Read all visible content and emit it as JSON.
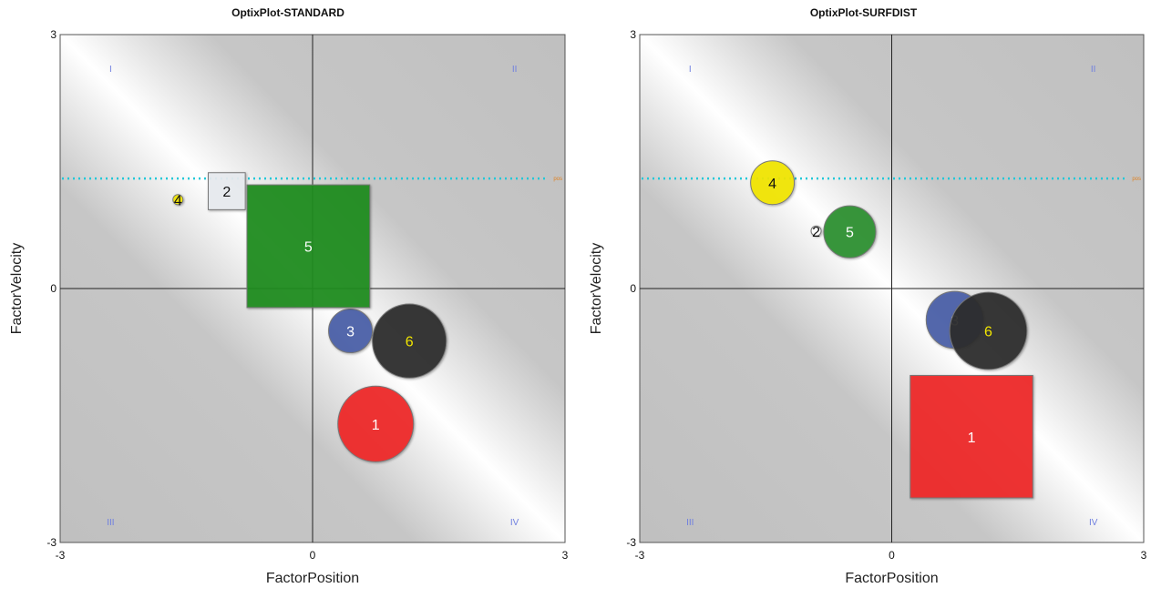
{
  "chart_data": [
    {
      "type": "scatter",
      "title": "OptixPlot-STANDARD",
      "xlabel": "FactorPosition",
      "ylabel": "FactorVelocity",
      "xlim": [
        -3,
        3
      ],
      "ylim": [
        -3,
        3
      ],
      "x_ticks": [
        "-3",
        "0",
        "3"
      ],
      "y_ticks": [
        "3",
        "0",
        "-3"
      ],
      "quadrant_labels": [
        "I",
        "II",
        "III",
        "IV"
      ],
      "reference_line": {
        "y": 1.3,
        "color": "#22c8d8",
        "label": "pos"
      },
      "points": [
        {
          "label": "1",
          "x": 0.75,
          "y": -1.6,
          "size": 0.45,
          "shape": "circle",
          "color": "#f02828",
          "label_color": "#ffffff"
        },
        {
          "label": "2",
          "x": -1.02,
          "y": 1.15,
          "size": 0.22,
          "shape": "square",
          "color": "#e8ecf0",
          "label_color": "#111111"
        },
        {
          "label": "3",
          "x": 0.45,
          "y": -0.5,
          "size": 0.26,
          "shape": "circle",
          "color": "#4a5fa8",
          "label_color": "#ffffff"
        },
        {
          "label": "4",
          "x": -1.6,
          "y": 1.05,
          "size": 0.06,
          "shape": "circle",
          "color": "#f2e600",
          "label_color": "#111111"
        },
        {
          "label": "5",
          "x": -0.05,
          "y": 0.5,
          "size": 0.73,
          "shape": "square",
          "color": "#1e8c1e",
          "label_color": "#ffffff"
        },
        {
          "label": "6",
          "x": 1.15,
          "y": -0.62,
          "size": 0.44,
          "shape": "circle",
          "color": "#2a2a2a",
          "label_color": "#f2e600"
        }
      ]
    },
    {
      "type": "scatter",
      "title": "OptixPlot-SURFDIST",
      "xlabel": "FactorPosition",
      "ylabel": "FactorVelocity",
      "xlim": [
        -3,
        3
      ],
      "ylim": [
        -3,
        3
      ],
      "x_ticks": [
        "-3",
        "0",
        "3"
      ],
      "y_ticks": [
        "3",
        "0",
        "-3"
      ],
      "quadrant_labels": [
        "I",
        "II",
        "III",
        "IV"
      ],
      "reference_line": {
        "y": 1.3,
        "color": "#22c8d8",
        "label": "pos"
      },
      "points": [
        {
          "label": "1",
          "x": 0.95,
          "y": -1.75,
          "size": 0.73,
          "shape": "square",
          "color": "#f02828",
          "label_color": "#ffffff"
        },
        {
          "label": "2",
          "x": -0.9,
          "y": 0.68,
          "size": 0.06,
          "shape": "circle",
          "color": "#ffffff",
          "label_color": "#111111"
        },
        {
          "label": "3",
          "x": 0.75,
          "y": -0.37,
          "size": 0.34,
          "shape": "circle",
          "color": "#4a5fa8",
          "label_color": "#ffffff"
        },
        {
          "label": "4",
          "x": -1.42,
          "y": 1.25,
          "size": 0.26,
          "shape": "circle",
          "color": "#f2e600",
          "label_color": "#111111"
        },
        {
          "label": "5",
          "x": -0.5,
          "y": 0.67,
          "size": 0.31,
          "shape": "circle",
          "color": "#2a9030",
          "label_color": "#ffffff"
        },
        {
          "label": "6",
          "x": 1.15,
          "y": -0.5,
          "size": 0.46,
          "shape": "circle",
          "color": "#2a2a2a",
          "label_color": "#f2e600"
        }
      ]
    }
  ]
}
